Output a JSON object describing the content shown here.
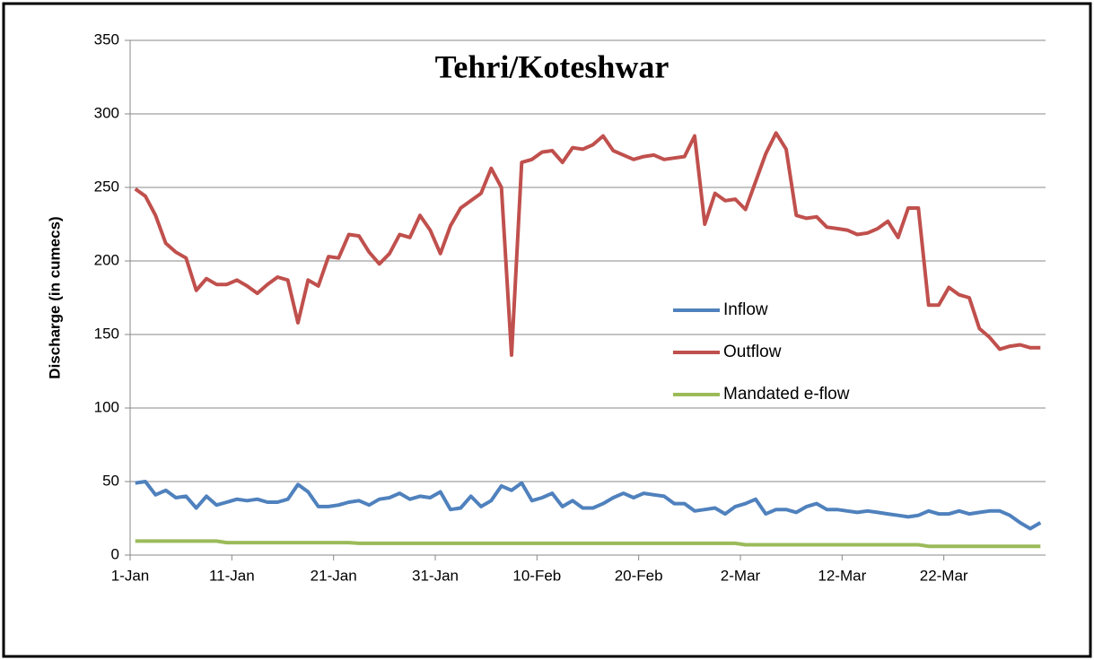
{
  "chart_data": {
    "type": "line",
    "title": "Tehri/Koteshwar",
    "y_label": "Discharge (in cumecs)",
    "categories": [
      "1-Jan",
      null,
      null,
      null,
      null,
      null,
      null,
      null,
      null,
      null,
      "11-Jan",
      null,
      null,
      null,
      null,
      null,
      null,
      null,
      null,
      null,
      "21-Jan",
      null,
      null,
      null,
      null,
      null,
      null,
      null,
      null,
      null,
      "31-Jan",
      null,
      null,
      null,
      null,
      null,
      null,
      null,
      null,
      null,
      "10-Feb",
      null,
      null,
      null,
      null,
      null,
      null,
      null,
      null,
      null,
      "20-Feb",
      null,
      null,
      null,
      null,
      null,
      null,
      null,
      null,
      null,
      "2-Mar",
      null,
      null,
      null,
      null,
      null,
      null,
      null,
      null,
      null,
      "12-Mar",
      null,
      null,
      null,
      null,
      null,
      null,
      null,
      null,
      null,
      "22-Mar",
      null,
      null,
      null,
      null,
      null,
      null,
      null,
      null,
      null
    ],
    "series": [
      {
        "name": "Inflow",
        "color": "#4f81bd",
        "values": [
          49,
          50,
          41,
          44,
          39,
          40,
          32,
          40,
          34,
          36,
          38,
          37,
          38,
          36,
          36,
          38,
          48,
          43,
          33,
          33,
          34,
          36,
          37,
          34,
          38,
          39,
          42,
          38,
          40,
          39,
          43,
          31,
          32,
          40,
          33,
          37,
          47,
          44,
          49,
          37,
          39,
          42,
          33,
          37,
          32,
          32,
          35,
          39,
          42,
          39,
          42,
          41,
          40,
          35,
          35,
          30,
          31,
          32,
          28,
          33,
          35,
          38,
          28,
          31,
          31,
          29,
          33,
          35,
          31,
          31,
          30,
          29,
          30,
          29,
          28,
          27,
          26,
          27,
          30,
          28,
          28,
          30,
          28,
          29,
          30,
          30,
          27,
          22,
          18,
          22
        ]
      },
      {
        "name": "Outflow",
        "color": "#c0504d",
        "values": [
          249,
          244,
          231,
          212,
          206,
          202,
          180,
          188,
          184,
          184,
          187,
          183,
          178,
          184,
          189,
          187,
          158,
          187,
          183,
          203,
          202,
          218,
          217,
          206,
          198,
          205,
          218,
          216,
          231,
          221,
          205,
          224,
          236,
          241,
          246,
          263,
          250,
          136,
          267,
          269,
          274,
          275,
          267,
          277,
          276,
          279,
          285,
          275,
          272,
          269,
          271,
          272,
          269,
          270,
          271,
          285,
          225,
          246,
          241,
          242,
          235,
          254,
          273,
          287,
          276,
          231,
          229,
          230,
          223,
          222,
          221,
          218,
          219,
          222,
          227,
          216,
          236,
          236,
          170,
          170,
          182,
          177,
          175,
          154,
          148,
          140,
          142,
          143,
          141,
          141
        ]
      },
      {
        "name": "Mandated e-flow",
        "color": "#9bbb59",
        "values": [
          9.5,
          9.5,
          9.5,
          9.5,
          9.5,
          9.5,
          9.5,
          9.5,
          9.5,
          8.5,
          8.5,
          8.5,
          8.5,
          8.5,
          8.5,
          8.5,
          8.5,
          8.5,
          8.5,
          8.5,
          8.5,
          8.5,
          8,
          8,
          8,
          8,
          8,
          8,
          8,
          8,
          8,
          8,
          8,
          8,
          8,
          8,
          8,
          8,
          8,
          8,
          8,
          8,
          8,
          8,
          8,
          8,
          8,
          8,
          8,
          8,
          8,
          8,
          8,
          8,
          8,
          8,
          8,
          8,
          8,
          8,
          7,
          7,
          7,
          7,
          7,
          7,
          7,
          7,
          7,
          7,
          7,
          7,
          7,
          7,
          7,
          7,
          7,
          7,
          6,
          6,
          6,
          6,
          6,
          6,
          6,
          6,
          6,
          6,
          6,
          6
        ]
      }
    ],
    "ylim": [
      0,
      350
    ],
    "yticks": [
      0,
      50,
      100,
      150,
      200,
      250,
      300,
      350
    ],
    "grid": true,
    "legend": "right"
  }
}
